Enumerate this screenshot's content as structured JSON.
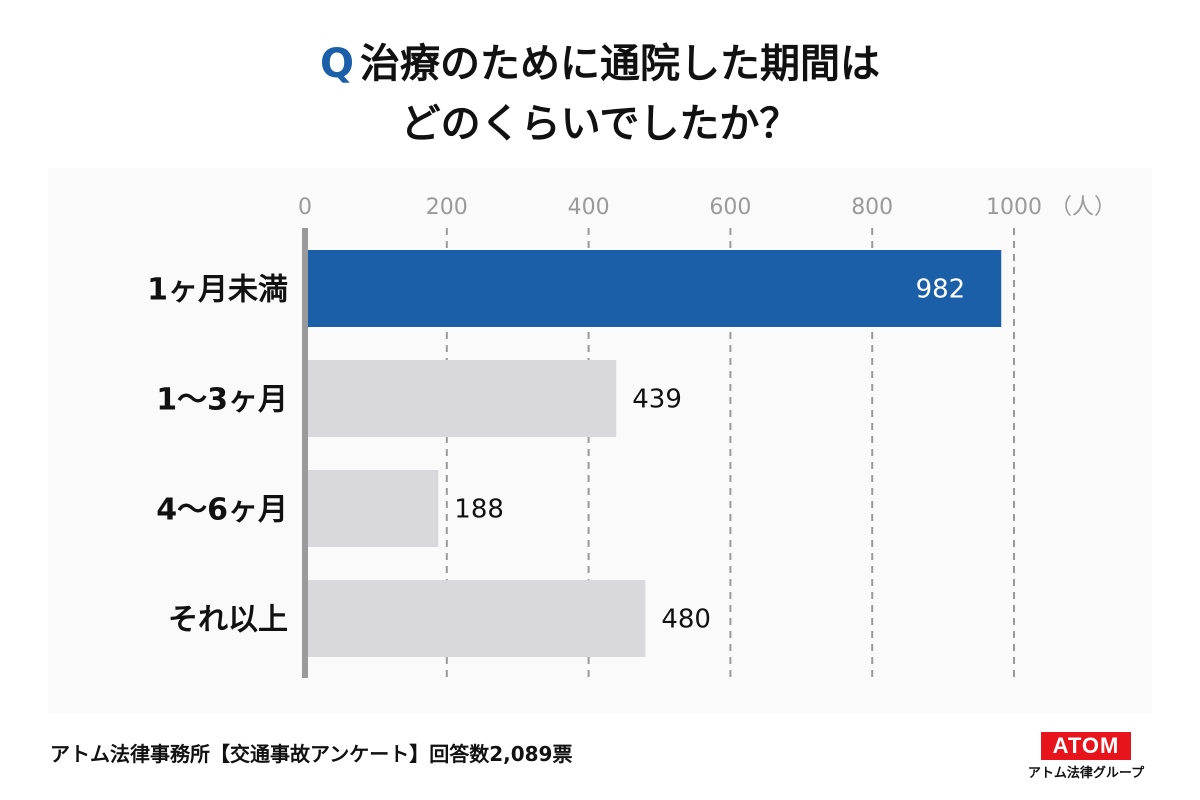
{
  "title": {
    "q_mark": "Q",
    "line1": "治療のために通院した期間は",
    "line2": "どのくらいでしたか？"
  },
  "chart_data": {
    "type": "bar",
    "orientation": "horizontal",
    "categories": [
      "1ヶ月未満",
      "1～3ヶ月",
      "4～6ヶ月",
      "それ以上"
    ],
    "values": [
      982,
      439,
      188,
      480
    ],
    "xlim": [
      0,
      1000
    ],
    "ticks": [
      0,
      200,
      400,
      600,
      800,
      1000
    ],
    "tick_labels": [
      "0",
      "200",
      "400",
      "600",
      "800",
      "1000"
    ],
    "unit_label": "（人）",
    "grid": true,
    "highlight_index": 0,
    "colors": {
      "highlight": "#1a5fa8",
      "default": "#d9d8dd",
      "grid": "#9a9a9a",
      "axis": "#9a9a9a",
      "tick_text": "#9a9a9a"
    }
  },
  "footer": {
    "note": "アトム法律事務所【交通事故アンケート】回答数2,089票"
  },
  "logo": {
    "mark": "ATOM",
    "sub": "アトム法律グループ"
  }
}
